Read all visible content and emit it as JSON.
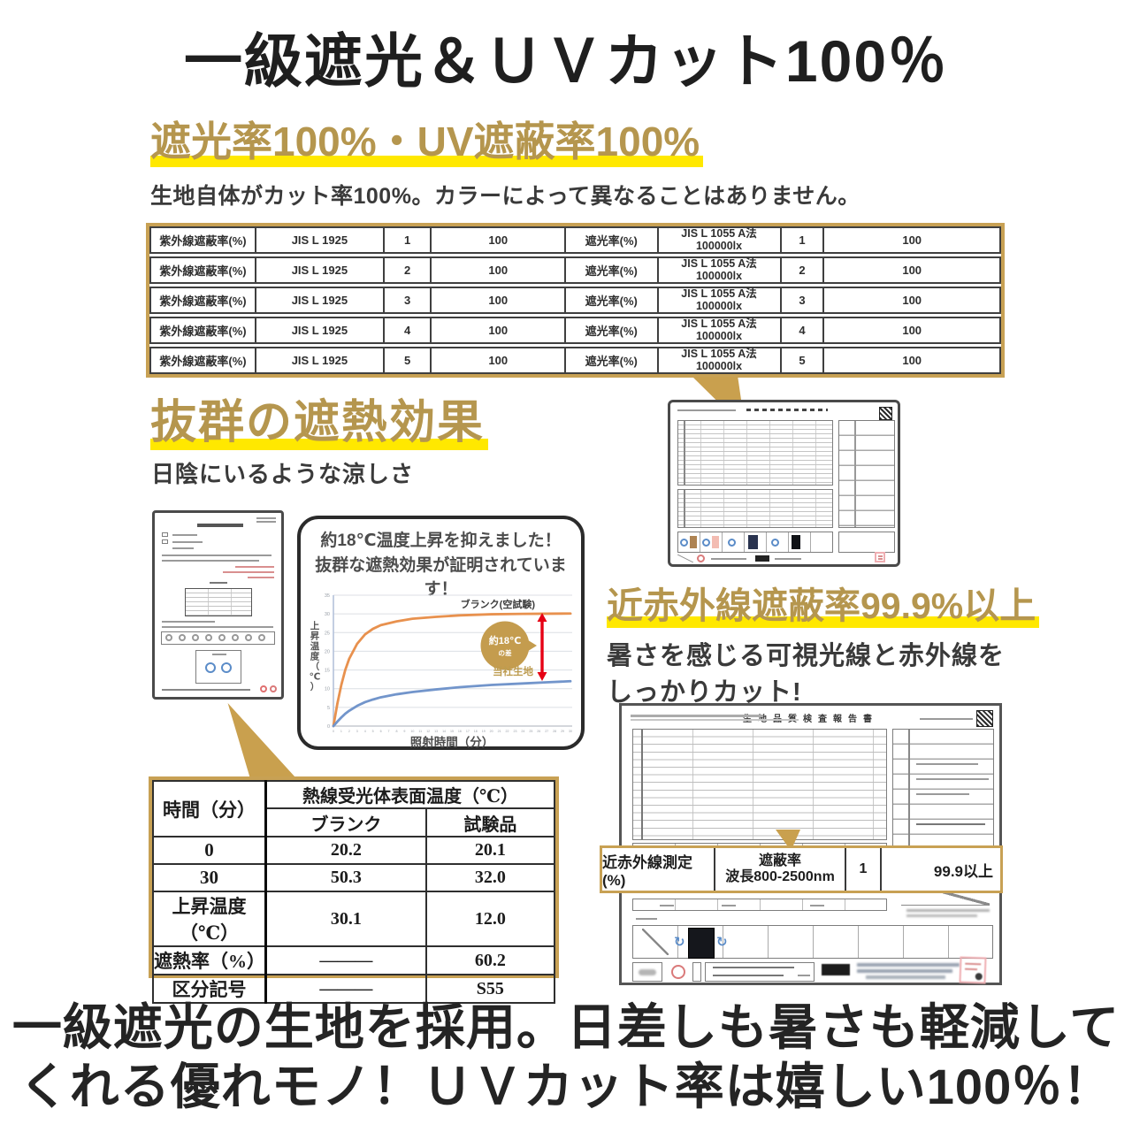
{
  "page": {
    "title": "一級遮光＆ＵＶカット100％",
    "footer_line1": "一級遮光の生地を採用。日差しも暑さも軽減して",
    "footer_line2": "くれる優れモノ！ＵＶカット率は嬉しい100％！"
  },
  "colors": {
    "accent_gold": "#C8A154",
    "heading_gold": "#B5964E",
    "highlight_yellow": "#FFE800",
    "series_blank_orange": "#E8914E",
    "series_fabric_blue": "#7295CB",
    "diff_arrow_red": "#E60014"
  },
  "uv_section": {
    "heading": "遮光率100%・UV遮蔽率100%",
    "description": "生地自体がカット率100%。カラーによって異なることはありません。",
    "table": {
      "rows": [
        {
          "uv_label": "紫外線遮蔽率(%)",
          "uv_method": "JIS L 1925",
          "uv_no": "1",
          "uv_value": "100",
          "shade_label": "遮光率(%)",
          "shade_method": "JIS L 1055 A法",
          "shade_lux": "100000lx",
          "shade_no": "1",
          "shade_value": "100"
        },
        {
          "uv_label": "紫外線遮蔽率(%)",
          "uv_method": "JIS L 1925",
          "uv_no": "2",
          "uv_value": "100",
          "shade_label": "遮光率(%)",
          "shade_method": "JIS L 1055 A法",
          "shade_lux": "100000lx",
          "shade_no": "2",
          "shade_value": "100"
        },
        {
          "uv_label": "紫外線遮蔽率(%)",
          "uv_method": "JIS L 1925",
          "uv_no": "3",
          "uv_value": "100",
          "shade_label": "遮光率(%)",
          "shade_method": "JIS L 1055 A法",
          "shade_lux": "100000lx",
          "shade_no": "3",
          "shade_value": "100"
        },
        {
          "uv_label": "紫外線遮蔽率(%)",
          "uv_method": "JIS L 1925",
          "uv_no": "4",
          "uv_value": "100",
          "shade_label": "遮光率(%)",
          "shade_method": "JIS L 1055 A法",
          "shade_lux": "100000lx",
          "shade_no": "4",
          "shade_value": "100"
        },
        {
          "uv_label": "紫外線遮蔽率(%)",
          "uv_method": "JIS L 1925",
          "uv_no": "5",
          "uv_value": "100",
          "shade_label": "遮光率(%)",
          "shade_method": "JIS L 1055 A法",
          "shade_lux": "100000lx",
          "shade_no": "5",
          "shade_value": "100"
        }
      ]
    }
  },
  "heat_section": {
    "heading": "抜群の遮熱効果",
    "subtext": "日陰にいるような涼しさ",
    "table": {
      "time_header": "時間（分）",
      "temp_header": "熱線受光体表面温度（℃）",
      "blank_header": "ブランク",
      "sample_header": "試験品",
      "rows": [
        {
          "label": "0",
          "blank": "20.2",
          "sample": "20.1"
        },
        {
          "label": "30",
          "blank": "50.3",
          "sample": "32.0"
        },
        {
          "label": "上昇温度（℃）",
          "blank": "30.1",
          "sample": "12.0"
        },
        {
          "label": "遮熱率（%）",
          "blank": "———",
          "sample": "60.2"
        },
        {
          "label": "区分記号",
          "blank": "———",
          "sample": "S55"
        }
      ]
    }
  },
  "ir_section": {
    "heading": "近赤外線遮蔽率99.9%以上",
    "desc_line1": "暑さを感じる可視光線と赤外線を",
    "desc_line2": "しっかりカット!",
    "cert_title": "生地品質検査報告書",
    "band": {
      "c1": "近赤外線測定(%)",
      "c2_line1": "遮蔽率",
      "c2_line2": "波長800-2500nm",
      "c3": "1",
      "c4": "99.9以上"
    }
  },
  "chart_data": {
    "type": "line",
    "title_line1": "約18℃温度上昇を抑えました！",
    "title_line2": "抜群な遮熱効果が証明されています！",
    "xlabel": "照射時間（分）",
    "ylabel": "上昇温度（℃）",
    "xlim": [
      0,
      30
    ],
    "ylim": [
      0,
      35
    ],
    "yticks": [
      0,
      5,
      10,
      15,
      20,
      25,
      30,
      35
    ],
    "xticks_step": 1,
    "grid": true,
    "legend_position": "inline-right",
    "annotation": {
      "line1": "約18℃",
      "line2": "の差"
    },
    "series": [
      {
        "name": "ブランク(空試験)",
        "color": "#E8914E",
        "x": [
          0,
          0.5,
          1,
          1.5,
          2,
          3,
          4,
          5,
          6,
          8,
          10,
          13,
          16,
          20,
          24,
          27,
          30
        ],
        "values": [
          0,
          6,
          11,
          15,
          18,
          22,
          24.5,
          26,
          27,
          28,
          28.7,
          29.2,
          29.6,
          29.9,
          30.0,
          30.05,
          30.1
        ]
      },
      {
        "name": "当社生地",
        "color": "#7295CB",
        "x": [
          0,
          0.5,
          1,
          1.5,
          2,
          3,
          4,
          5,
          6,
          8,
          10,
          13,
          16,
          20,
          24,
          27,
          30
        ],
        "values": [
          0,
          1.2,
          2.3,
          3.3,
          4.1,
          5.4,
          6.4,
          7.1,
          7.7,
          8.5,
          9.1,
          9.8,
          10.4,
          11,
          11.4,
          11.7,
          12
        ]
      }
    ]
  }
}
